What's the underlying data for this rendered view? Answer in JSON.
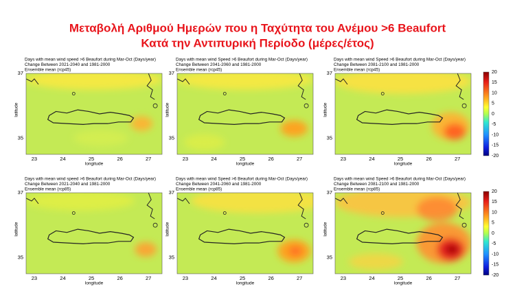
{
  "title": [
    "Μεταβολή Αριθμού Ημερών που η Ταχύτητα του Ανέμου >6 Beaufort",
    "Κατά την Αντιπυρική Περίοδο (μέρες/έτος)"
  ],
  "panels": [
    {
      "header": [
        "Days with mean wind speed >6 Beaufort during Mar-Oct (Days/year)",
        "Change Between 2021-2040 and 1981-2000",
        "Ensemble mean (rcp45)"
      ],
      "x_label": "longitude",
      "y_label": "latitude",
      "x_ticks": [
        "23",
        "24",
        "25",
        "26",
        "27"
      ],
      "y_ticks": [
        "37",
        "35"
      ]
    },
    {
      "header": [
        "Days with mean wind Speed >6 Beaufort during Mar-Oct (Days/year)",
        "Change Between 2041-2060 and 1981-2000",
        "Ensemble mean (rcp45)"
      ],
      "x_label": "longitude",
      "y_label": "latitude",
      "x_ticks": [
        "23",
        "24",
        "25",
        "26",
        "27"
      ],
      "y_ticks": [
        "37",
        "35"
      ]
    },
    {
      "header": [
        "Days with mean wind Speed >6 Beaufort during Mar-Oct (Days/year)",
        "Change Between 2081-2100 and 1981-2000",
        "Ensemble mean (rcp45)"
      ],
      "x_label": "longitude",
      "y_label": "latitude",
      "x_ticks": [
        "23",
        "24",
        "25",
        "26",
        "27"
      ],
      "y_ticks": [
        "37",
        "35"
      ]
    },
    {
      "header": [
        "Days with mean wind speed >6 Beaufort during Mar-Oct (Days/year)",
        "Change Between 2021-2040 and 1981-2000",
        "Ensemble mean (rcp85)"
      ],
      "x_label": "longitude",
      "y_label": "latitude",
      "x_ticks": [
        "23",
        "24",
        "25",
        "26",
        "27"
      ],
      "y_ticks": [
        "37",
        "35"
      ]
    },
    {
      "header": [
        "Days with mean wind Speed >6 Beaufort during Mar-Oct (Days/year)",
        "Change Between 2041-2060 and 1981-2000",
        "Ensemble mean (rcp85)"
      ],
      "x_label": "longitude",
      "y_label": "latitude",
      "x_ticks": [
        "23",
        "24",
        "25",
        "26",
        "27"
      ],
      "y_ticks": [
        "37",
        "35"
      ]
    },
    {
      "header": [
        "Days with mean wind Speed >6 Beaufort during Mar-Oct (Days/year)",
        "Change Between 2081-2100 and 1981-2000",
        "Ensemble mean (rcp85)"
      ],
      "x_label": "longitude",
      "y_label": "latitude",
      "x_ticks": [
        "23",
        "24",
        "25",
        "26",
        "27"
      ],
      "y_ticks": [
        "37",
        "35"
      ]
    }
  ],
  "colorbar_ticks": [
    "20",
    "15",
    "10",
    "5",
    "0",
    "-5",
    "-10",
    "-15",
    "-20"
  ]
}
